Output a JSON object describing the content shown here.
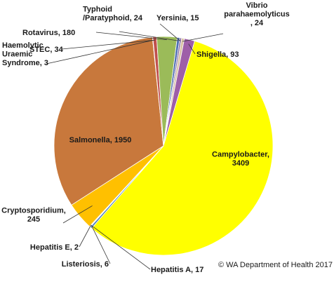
{
  "chart_data": {
    "type": "pie",
    "title": "",
    "credit": "© WA Department  of Health 2017",
    "slices": [
      {
        "name": "Shigella",
        "value": 93,
        "color": "#9e5fa8",
        "label_lines": [
          "Shigella, 93"
        ]
      },
      {
        "name": "Campylobacter",
        "value": 3409,
        "color": "#ffff00",
        "label_lines": [
          "Campylobacter,",
          "3409"
        ]
      },
      {
        "name": "Hepatitis A",
        "value": 17,
        "color": "#4f81bd",
        "label_lines": [
          "Hepatitis A, 17"
        ]
      },
      {
        "name": "Listeriosis",
        "value": 6,
        "color": "#8064a2",
        "label_lines": [
          "Listeriosis, 6"
        ]
      },
      {
        "name": "Hepatitis E",
        "value": 2,
        "color": "#c0504d",
        "label_lines": [
          "Hepatitis E, 2"
        ]
      },
      {
        "name": "Cryptosporidium",
        "value": 245,
        "color": "#ffc000",
        "label_lines": [
          "Cryptosporidium,",
          "245"
        ]
      },
      {
        "name": "Salmonella",
        "value": 1950,
        "color": "#c8783c",
        "label_lines": [
          "Salmonella, 1950"
        ]
      },
      {
        "name": "Haemolytic Uraemic Syndrome",
        "value": 3,
        "color": "#7f7f7f",
        "label_lines": [
          "Haemolytic",
          "Uraemic",
          "Syndrome, 3"
        ]
      },
      {
        "name": "STEC",
        "value": 34,
        "color": "#c0504d",
        "label_lines": [
          "STEC, 34"
        ]
      },
      {
        "name": "Rotavirus",
        "value": 180,
        "color": "#9bbb59",
        "label_lines": [
          "Rotavirus, 180"
        ]
      },
      {
        "name": "Typhoid /Paratyphoid",
        "value": 24,
        "color": "#4f6fb3",
        "label_lines": [
          "Typhoid",
          "/Paratyphoid, 24"
        ]
      },
      {
        "name": "Yersinia",
        "value": 15,
        "color": "#8064a2",
        "label_lines": [
          "Yersinia, 15"
        ]
      },
      {
        "name": "Vibrio parahaemolyticus",
        "value": 24,
        "color": "#d9c3a5",
        "label_lines": [
          "Vibrio",
          "parahaemolyticus",
          ", 24"
        ]
      }
    ]
  }
}
